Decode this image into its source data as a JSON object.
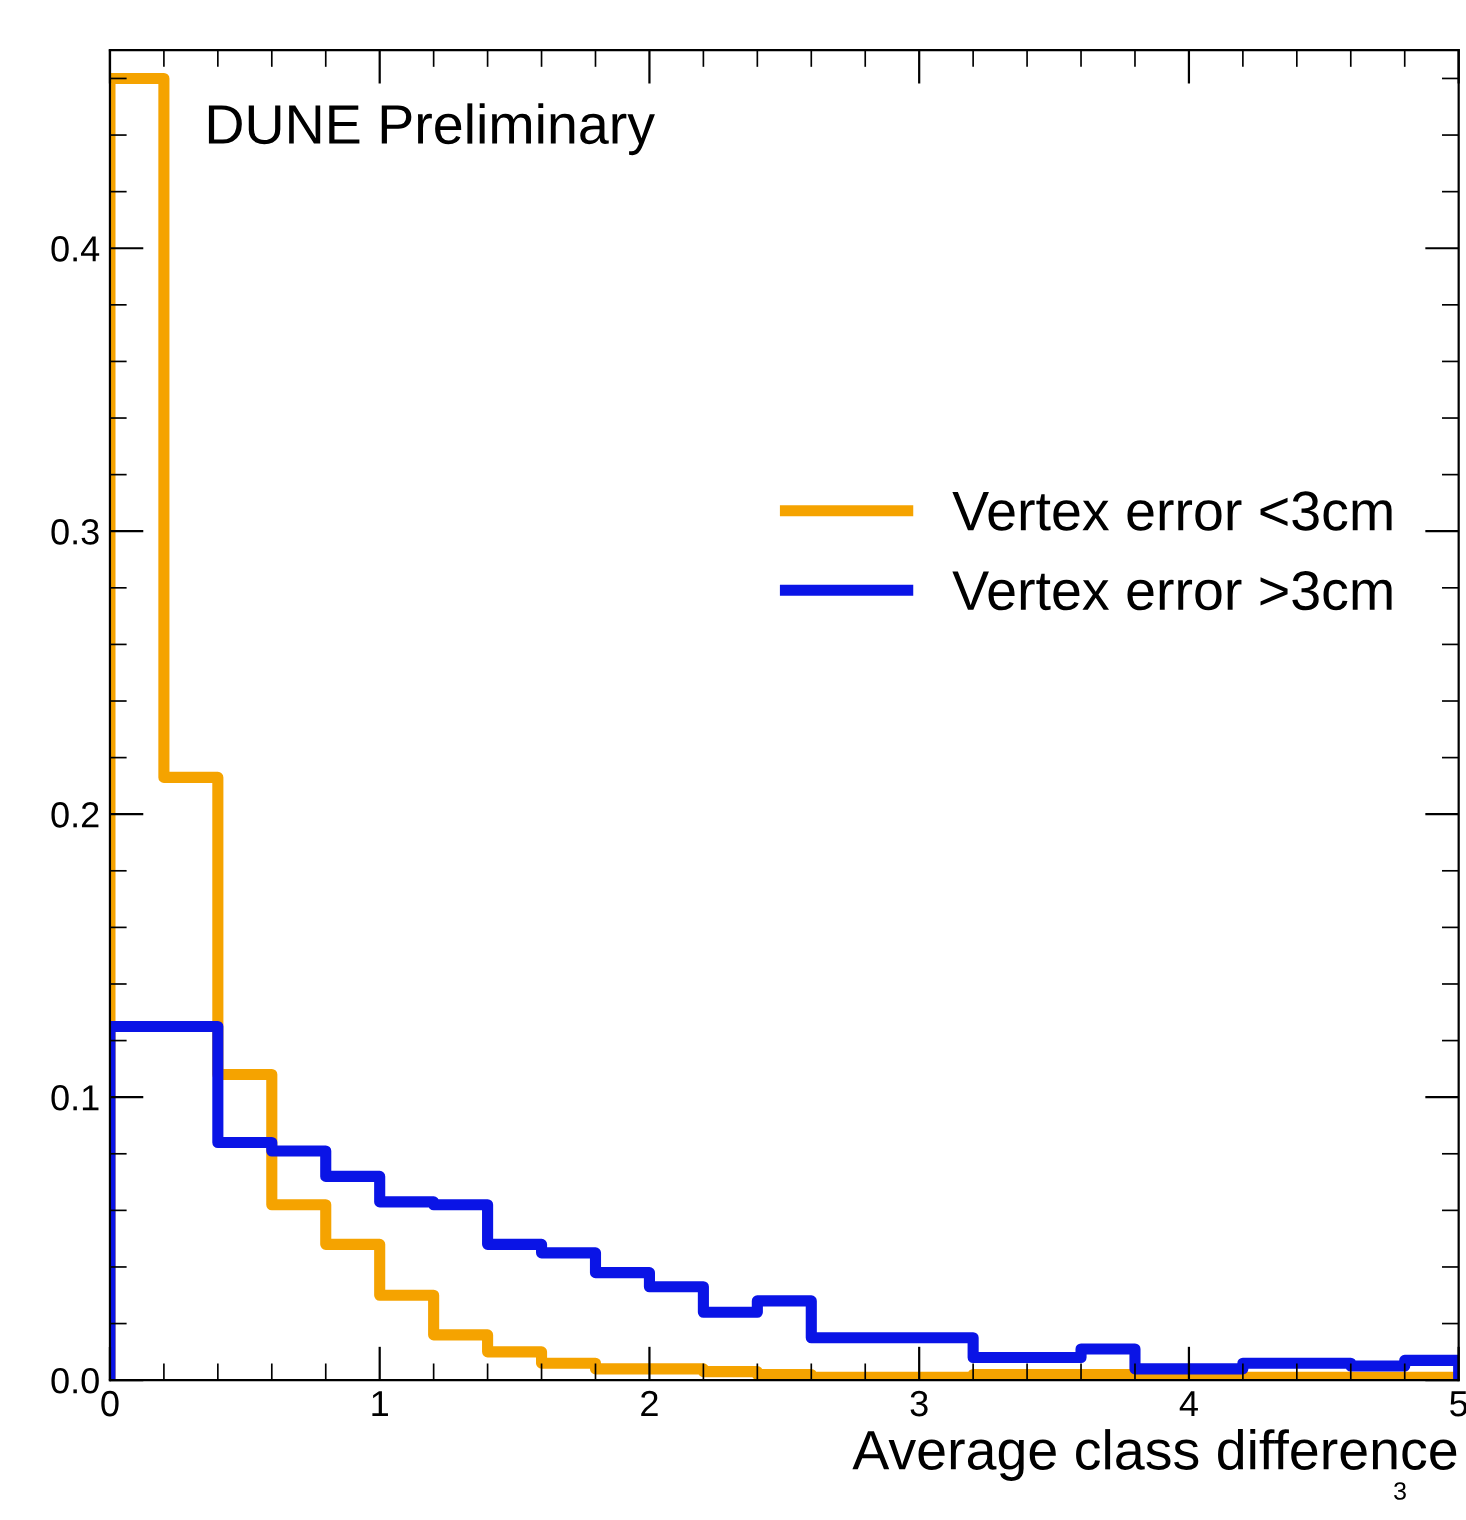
{
  "chart_data": {
    "type": "histogram",
    "xlabel": "Average class difference",
    "annotations": [
      "DUNE Preliminary",
      "3"
    ],
    "bins": [
      0,
      0.2,
      0.4,
      0.6,
      0.8,
      1.0,
      1.2,
      1.4,
      1.6,
      1.8,
      2.0,
      2.2,
      2.4,
      2.6,
      2.8,
      3.0,
      3.2,
      3.4,
      3.6,
      3.8,
      4.0,
      4.2,
      4.4,
      4.6,
      4.8,
      5.0
    ],
    "series": [
      {
        "name": "Vertex error <3cm",
        "color": "#f5a300",
        "values": [
          0.46,
          0.213,
          0.108,
          0.062,
          0.048,
          0.03,
          0.016,
          0.01,
          0.006,
          0.004,
          0.004,
          0.003,
          0.002,
          0.001,
          0.001,
          0.001,
          0.002,
          0.002,
          0.002,
          0.001,
          0.001,
          0.001,
          0.001,
          0.001,
          0.001
        ]
      },
      {
        "name": "Vertex error >3cm",
        "color": "#0a14e6",
        "values": [
          0.125,
          0.125,
          0.084,
          0.081,
          0.072,
          0.063,
          0.062,
          0.048,
          0.045,
          0.038,
          0.033,
          0.024,
          0.028,
          0.015,
          0.015,
          0.015,
          0.008,
          0.008,
          0.011,
          0.004,
          0.004,
          0.006,
          0.006,
          0.005,
          0.007
        ]
      }
    ],
    "xlim": [
      0,
      5
    ],
    "ylim": [
      0,
      0.47
    ],
    "xticks": [
      0,
      1,
      2,
      3,
      4,
      5
    ],
    "yticks": [
      {
        "value": 0,
        "label": "0.0"
      },
      0.1,
      0.2,
      0.3,
      0.4
    ],
    "legend": "right",
    "grid": false
  }
}
